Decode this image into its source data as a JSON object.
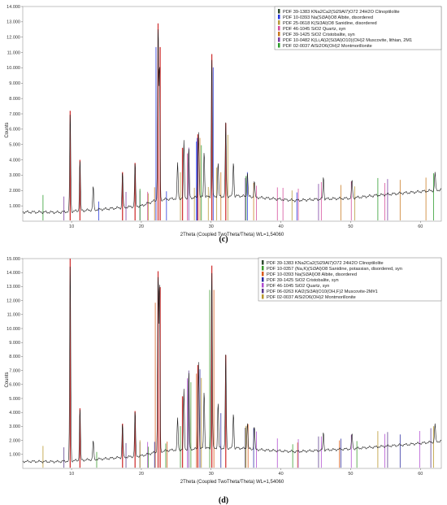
{
  "chart_data": [
    {
      "id": "c",
      "type": "line",
      "panel_label": "(c)",
      "xlabel": "2Theta (Coupled TwoTheta/Theta) WL=1,54060",
      "ylabel": "Counts",
      "xlim": [
        3,
        63
      ],
      "ylim": [
        0,
        14000
      ],
      "x_ticks": [
        10,
        20,
        30,
        40,
        50,
        60
      ],
      "y_ticks": [
        1000,
        2000,
        3000,
        4000,
        5000,
        6000,
        7000,
        8000,
        9000,
        10000,
        11000,
        12000,
        13000,
        14000
      ],
      "y_tick_labels": [
        "1.000",
        "2.000",
        "3.000",
        "4.000",
        "5.000",
        "6.000",
        "7.000",
        "8.000",
        "9.000",
        "10.000",
        "11.000",
        "12.000",
        "13.000",
        "14.000"
      ],
      "legend_placement": "top-right",
      "pattern": {
        "baseline": [
          [
            3,
            600
          ],
          [
            8,
            580
          ],
          [
            15,
            800
          ],
          [
            20,
            1000
          ],
          [
            22,
            1350
          ],
          [
            24,
            1450
          ],
          [
            26,
            1500
          ],
          [
            30,
            1600
          ],
          [
            34,
            1650
          ],
          [
            38,
            1500
          ],
          [
            42,
            1350
          ],
          [
            46,
            1450
          ],
          [
            50,
            1500
          ],
          [
            54,
            1700
          ],
          [
            58,
            1850
          ],
          [
            63,
            2050
          ]
        ],
        "peaks": [
          [
            9.8,
            7200
          ],
          [
            11.2,
            4000
          ],
          [
            13.1,
            2300
          ],
          [
            17.3,
            3200
          ],
          [
            19.1,
            3800
          ],
          [
            22.4,
            12900
          ],
          [
            22.6,
            10300
          ],
          [
            25.2,
            3800
          ],
          [
            26.1,
            5200
          ],
          [
            26.8,
            4800
          ],
          [
            28.2,
            5900
          ],
          [
            29.0,
            4600
          ],
          [
            30.1,
            10900
          ],
          [
            31.0,
            3800
          ],
          [
            32.1,
            6400
          ],
          [
            33.2,
            3900
          ],
          [
            35.2,
            3200
          ],
          [
            36.2,
            2600
          ],
          [
            46.1,
            2900
          ],
          [
            50.2,
            2700
          ],
          [
            62.1,
            3200
          ]
        ]
      },
      "legend": [
        {
          "label": "PDF 39-1383 KNa2Ca2(Si29Al7)O72 24H2O Clinoptilolite",
          "color": "#2e4a2e"
        },
        {
          "label": "PDF 10-0393 Na(Si3Al)O8 Albite, disordered",
          "color": "#2233dd"
        },
        {
          "label": "PDF 25-0618 K(Si3Al)O8 Sanidine, disordered",
          "color": "#b89a3a"
        },
        {
          "label": "PDF 46-1045 SiO2 Quartz, syn",
          "color": "#d44a9a"
        },
        {
          "label": "PDF 39-1425 SiO2 Cristobalite, syn",
          "color": "#c8781e"
        },
        {
          "label": "PDF 10-0482 K(Li,Al)2(Si3Al)O10)(OH)2 Muscovite, lithian, 2M1",
          "color": "#7a3aa0"
        },
        {
          "label": "PDF 02-0037 AlSi2O6(OH)2 Montmorillonite",
          "color": "#2a9a2a"
        }
      ],
      "stick_patterns": [
        {
          "color": "#c81414",
          "positions": [
            9.8,
            11.2,
            17.3,
            19.1,
            22.4,
            22.7,
            25.9,
            28.1,
            30.1,
            32.1
          ]
        },
        {
          "color": "#2233dd",
          "positions": [
            13.9,
            22.1,
            23.6,
            27.9,
            28.0,
            30.3,
            35.2,
            42.3
          ]
        },
        {
          "color": "#b89a3a",
          "positions": [
            21.0,
            25.6,
            27.6,
            29.6,
            30.8,
            32.4,
            41.6,
            50.6
          ]
        },
        {
          "color": "#d44a9a",
          "positions": [
            20.9,
            26.6,
            36.5,
            39.5,
            40.3,
            42.5,
            45.8,
            50.1,
            54.9
          ]
        },
        {
          "color": "#c8781e",
          "positions": [
            21.9,
            28.4,
            31.4,
            36.1,
            48.6,
            57.1,
            60.8
          ]
        },
        {
          "color": "#7a3aa0",
          "positions": [
            8.9,
            17.8,
            19.8,
            26.8,
            34.9,
            45.4,
            55.3
          ]
        },
        {
          "color": "#2a9a2a",
          "positions": [
            5.9,
            19.8,
            28.6,
            35.0,
            53.9,
            61.9
          ]
        }
      ]
    },
    {
      "id": "d",
      "type": "line",
      "panel_label": "(d)",
      "xlabel": "2Theta (Coupled TwoTheta/Theta) WL=1,54060",
      "ylabel": "Counts",
      "xlim": [
        3,
        63
      ],
      "ylim": [
        0,
        15000
      ],
      "x_ticks": [
        10,
        20,
        30,
        40,
        50,
        60
      ],
      "y_ticks": [
        1000,
        2000,
        3000,
        4000,
        5000,
        6000,
        7000,
        8000,
        9000,
        10000,
        11000,
        12000,
        13000,
        14000,
        15000
      ],
      "y_tick_labels": [
        "1.000",
        "2.000",
        "3.000",
        "4.000",
        "5.000",
        "6.000",
        "7.000",
        "8.000",
        "9.000",
        "10.000",
        "11.000",
        "12.000",
        "13.000",
        "14.000",
        "15.000"
      ],
      "legend_placement": "top-right",
      "pattern": {
        "baseline": [
          [
            3,
            500
          ],
          [
            8,
            480
          ],
          [
            15,
            700
          ],
          [
            20,
            900
          ],
          [
            22,
            1150
          ],
          [
            24,
            1300
          ],
          [
            26,
            1350
          ],
          [
            30,
            1450
          ],
          [
            34,
            1450
          ],
          [
            38,
            1300
          ],
          [
            42,
            1200
          ],
          [
            46,
            1300
          ],
          [
            50,
            1400
          ],
          [
            54,
            1550
          ],
          [
            58,
            1700
          ],
          [
            63,
            1950
          ]
        ],
        "peaks": [
          [
            9.8,
            15000
          ],
          [
            11.2,
            4300
          ],
          [
            13.1,
            2000
          ],
          [
            17.3,
            3200
          ],
          [
            19.1,
            4100
          ],
          [
            22.4,
            14100
          ],
          [
            22.6,
            13500
          ],
          [
            25.2,
            3600
          ],
          [
            26.1,
            5600
          ],
          [
            26.8,
            7000
          ],
          [
            28.2,
            7700
          ],
          [
            29.0,
            5600
          ],
          [
            30.1,
            14500
          ],
          [
            31.0,
            4700
          ],
          [
            32.1,
            8100
          ],
          [
            33.2,
            4000
          ],
          [
            35.2,
            3300
          ],
          [
            36.2,
            3000
          ],
          [
            46.1,
            2600
          ],
          [
            50.2,
            2500
          ],
          [
            62.1,
            3200
          ]
        ]
      },
      "legend": [
        {
          "label": "PDF 39-1383 KNa2Ca2(Si29Al7)O72 24H2O Clinoptilolite",
          "color": "#2e4a2e"
        },
        {
          "label": "PDF 10-0357 (Na,K)(Si3Al)O8 Sanidine, potassian, disordered, syn",
          "color": "#3a9a2a"
        },
        {
          "label": "PDF 10-0393 Na(Si3Al)O8 Albite, disordered",
          "color": "#d85a1a"
        },
        {
          "label": "PDF 39-1425 SiO2 Cristobalite, syn",
          "color": "#2a2aa0"
        },
        {
          "label": "PDF 46-1045 SiO2 Quartz, syn",
          "color": "#b04ad0"
        },
        {
          "label": "PDF 06-0263 KAl2(Si3Al)O10(OH,F)2 Muscovite-2M#1",
          "color": "#5a3a8a"
        },
        {
          "label": "PDF 02-0037 AlSi2O6(OH)2 Montmorillonite",
          "color": "#b8962a"
        }
      ],
      "stick_patterns": [
        {
          "color": "#c81414",
          "positions": [
            9.8,
            11.2,
            17.3,
            19.1,
            22.4,
            22.7,
            25.9,
            28.1,
            30.1,
            32.1
          ]
        },
        {
          "color": "#3a9a2a",
          "positions": [
            13.6,
            21.0,
            23.5,
            25.6,
            27.1,
            29.8,
            34.9,
            41.7,
            50.9
          ]
        },
        {
          "color": "#d85a1a",
          "positions": [
            22.0,
            23.7,
            27.9,
            30.4,
            35.3,
            42.4,
            48.4
          ]
        },
        {
          "color": "#2a2aa0",
          "positions": [
            21.9,
            28.4,
            31.4,
            36.1,
            48.6,
            57.1
          ]
        },
        {
          "color": "#b04ad0",
          "positions": [
            20.9,
            26.6,
            36.5,
            39.5,
            42.5,
            45.8,
            50.1,
            54.9,
            59.9
          ]
        },
        {
          "color": "#5a3a8a",
          "positions": [
            8.9,
            17.8,
            19.8,
            26.8,
            34.9,
            45.4,
            55.3,
            61.5
          ]
        },
        {
          "color": "#b8962a",
          "positions": [
            5.9,
            19.8,
            28.6,
            35.0,
            53.9,
            61.9
          ]
        }
      ]
    }
  ]
}
